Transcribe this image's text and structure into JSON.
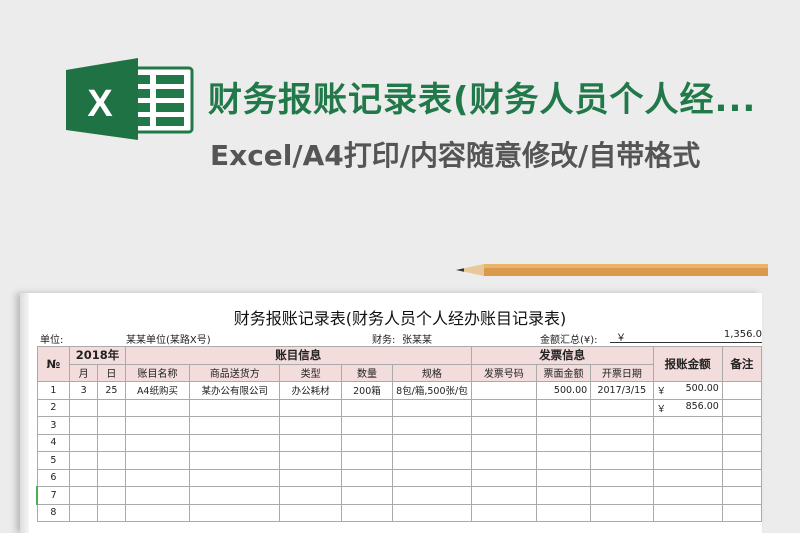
{
  "banner": {
    "title": "财务报账记录表(财务人员个人经...",
    "subtitle": "Excel/A4打印/内容随意修改/自带格式",
    "logo_letter": "X"
  },
  "colors": {
    "brand_green": "#21794a",
    "header_fill": "#f3dcdc"
  },
  "sheet": {
    "title": "财务报账记录表(财务人员个人经办账目记录表)",
    "unit_label": "单位:",
    "unit_value": "某某单位(某路X号)",
    "finance_label": "财务:",
    "finance_value": "张某某",
    "total_label": "金额汇总(¥):",
    "total_currency": "￥",
    "total_value": "1,356.0",
    "header": {
      "no": "№",
      "year": "2018年",
      "account_info": "账目信息",
      "invoice_info": "发票信息",
      "amount": "报账金额",
      "remark": "备注",
      "sub": [
        "月",
        "日",
        "账目名称",
        "商品送货方",
        "类型",
        "数量",
        "规格",
        "发票号码",
        "票面金额",
        "开票日期"
      ]
    },
    "rows": [
      {
        "no": "1",
        "m": "3",
        "d": "25",
        "name": "A4纸购买",
        "vendor": "某办公有限公司",
        "type": "办公耗材",
        "qty": "200箱",
        "spec": "8包/箱,500张/包",
        "inv": "",
        "face": "500.00",
        "date": "2017/3/15",
        "cur": "￥",
        "amt": "500.00"
      },
      {
        "no": "2",
        "m": "",
        "d": "",
        "name": "",
        "vendor": "",
        "type": "",
        "qty": "",
        "spec": "",
        "inv": "",
        "face": "",
        "date": "",
        "cur": "￥",
        "amt": "856.00"
      },
      {
        "no": "3"
      },
      {
        "no": "4"
      },
      {
        "no": "5"
      },
      {
        "no": "6"
      },
      {
        "no": "7"
      },
      {
        "no": "8"
      }
    ]
  }
}
